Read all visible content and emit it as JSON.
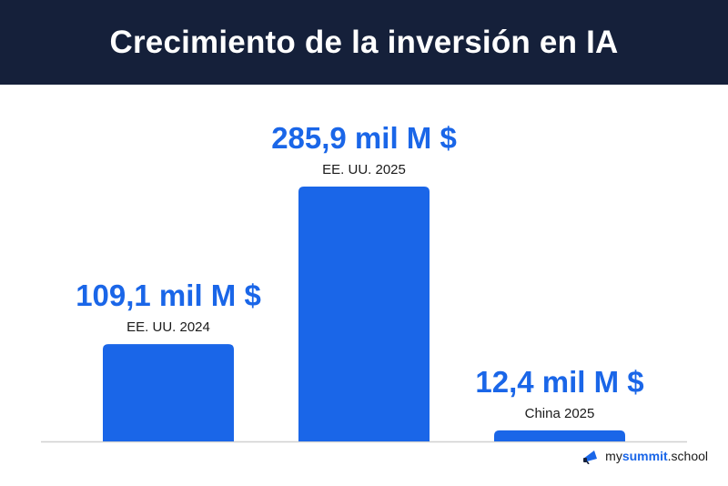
{
  "title": "Crecimiento de la inversión en IA",
  "chart_data": {
    "type": "bar",
    "categories": [
      "EE. UU. 2024",
      "EE. UU. 2025",
      "China 2025"
    ],
    "values": [
      109.1,
      285.9,
      12.4
    ],
    "value_labels": [
      "109,1 mil M $",
      "285,9 mil M $",
      "12,4 mil M $"
    ],
    "ylim": [
      0,
      285.9
    ],
    "grid": false,
    "bar_color": "#1a66e8",
    "label_color": "#1a66e8",
    "baseline_color": "#d0d0d0"
  },
  "brand": {
    "prefix": "my",
    "highlight": "summit",
    "suffix": ".school",
    "icon": "megaphone-icon"
  }
}
